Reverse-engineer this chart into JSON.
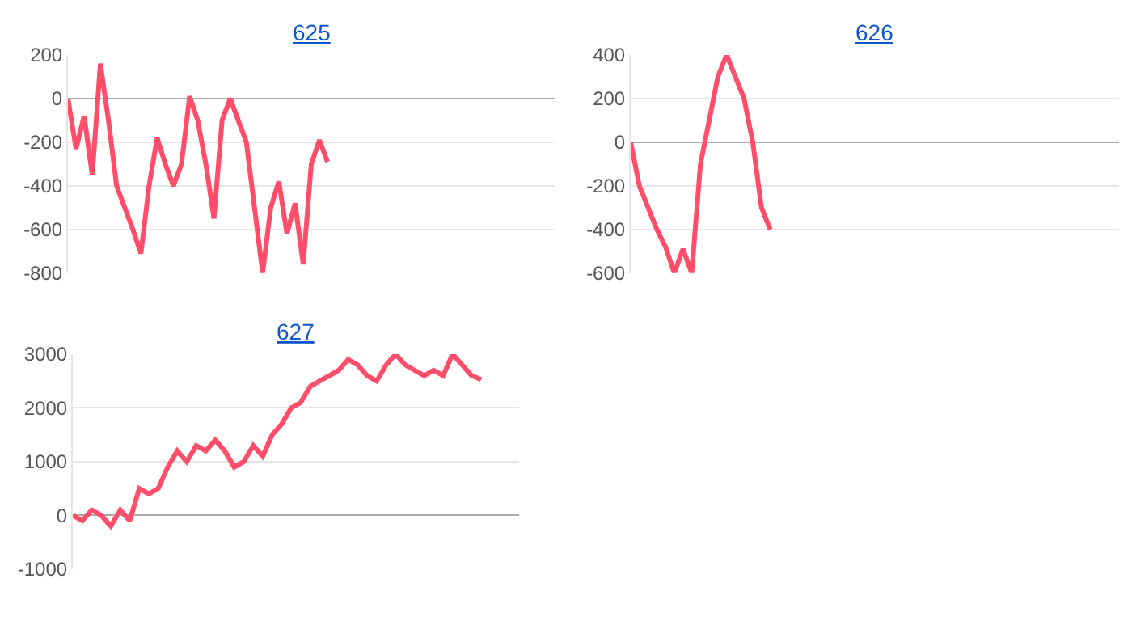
{
  "chart_data": [
    {
      "type": "line",
      "title": "625",
      "categories": [
        null,
        null,
        null,
        null,
        null,
        null,
        null,
        null,
        null,
        null,
        null,
        null,
        null,
        null,
        null,
        null,
        null,
        null,
        null,
        null,
        null,
        null,
        null,
        null,
        null,
        null,
        null,
        null,
        null,
        null,
        null,
        null,
        null,
        null,
        null,
        null,
        null,
        null,
        null,
        null,
        null,
        null,
        null,
        null,
        null,
        null,
        null,
        null,
        null,
        null,
        null,
        null,
        null,
        null,
        null,
        null,
        null,
        null,
        null,
        null,
        null
      ],
      "series": [
        {
          "color": "#ff4d6a",
          "values": [
            0,
            -230,
            -80,
            -350,
            160,
            -100,
            -400,
            -500,
            -600,
            -710,
            -400,
            -180,
            -300,
            -400,
            -300,
            10,
            -100,
            -300,
            -550,
            -100,
            0,
            -100,
            -200,
            -500,
            -800,
            -500,
            -380,
            -620,
            -480,
            -760,
            -300,
            -190,
            -290,
            null,
            null,
            null,
            null,
            null,
            null,
            null,
            null,
            null,
            null,
            null,
            null,
            null,
            null,
            null,
            null,
            null,
            null,
            null,
            null,
            null,
            null,
            null,
            null,
            null,
            null,
            null,
            null
          ]
        }
      ],
      "ylim": [
        -800,
        200
      ],
      "yticks": [
        -800,
        -600,
        -400,
        -200,
        0,
        200
      ],
      "grid": "y",
      "tick_labels": "y",
      "legend": false
    },
    {
      "type": "line",
      "title": "626",
      "categories": [
        null,
        null,
        null,
        null,
        null,
        null,
        null,
        null,
        null,
        null,
        null,
        null,
        null,
        null,
        null,
        null,
        null,
        null,
        null,
        null,
        null,
        null,
        null,
        null,
        null,
        null,
        null,
        null,
        null,
        null,
        null,
        null,
        null,
        null,
        null,
        null,
        null,
        null,
        null,
        null,
        null,
        null,
        null,
        null,
        null,
        null,
        null,
        null,
        null,
        null,
        null,
        null,
        null,
        null,
        null,
        null,
        null
      ],
      "series": [
        {
          "color": "#ff4d6a",
          "values": [
            0,
            -200,
            -300,
            -400,
            -480,
            -600,
            -490,
            -600,
            -100,
            100,
            300,
            400,
            300,
            200,
            0,
            -300,
            -400,
            null,
            null,
            null,
            null,
            null,
            null,
            null,
            null,
            null,
            null,
            null,
            null,
            null,
            null,
            null,
            null,
            null,
            null,
            null,
            null,
            null,
            null,
            null,
            null,
            null,
            null,
            null,
            null,
            null,
            null,
            null,
            null,
            null,
            null,
            null,
            null,
            null,
            null,
            null,
            null
          ]
        }
      ],
      "ylim": [
        -600,
        400
      ],
      "yticks": [
        -600,
        -400,
        -200,
        0,
        200,
        400
      ],
      "grid": "y",
      "tick_labels": "y",
      "legend": false
    },
    {
      "type": "line",
      "title": "627",
      "categories": [
        null,
        null,
        null,
        null,
        null,
        null,
        null,
        null,
        null,
        null,
        null,
        null,
        null,
        null,
        null,
        null,
        null,
        null,
        null,
        null,
        null,
        null,
        null,
        null,
        null,
        null,
        null,
        null,
        null,
        null,
        null,
        null,
        null,
        null,
        null,
        null,
        null,
        null,
        null,
        null,
        null,
        null,
        null,
        null,
        null,
        null,
        null,
        null
      ],
      "series": [
        {
          "color": "#ff4d6a",
          "values": [
            0,
            -100,
            100,
            0,
            -200,
            100,
            -100,
            500,
            400,
            500,
            900,
            1200,
            1000,
            1300,
            1200,
            1400,
            1200,
            900,
            1000,
            1300,
            1100,
            1500,
            1700,
            2000,
            2100,
            2400,
            2500,
            2600,
            2700,
            2900,
            2800,
            2600,
            2500,
            2800,
            3000,
            2800,
            2700,
            2600,
            2700,
            2600,
            3000,
            2800,
            2600,
            2530,
            null,
            null,
            null,
            null
          ]
        }
      ],
      "ylim": [
        -1000,
        3000
      ],
      "yticks": [
        -1000,
        0,
        1000,
        2000,
        3000
      ],
      "grid": "y",
      "tick_labels": "y",
      "legend": false
    }
  ]
}
